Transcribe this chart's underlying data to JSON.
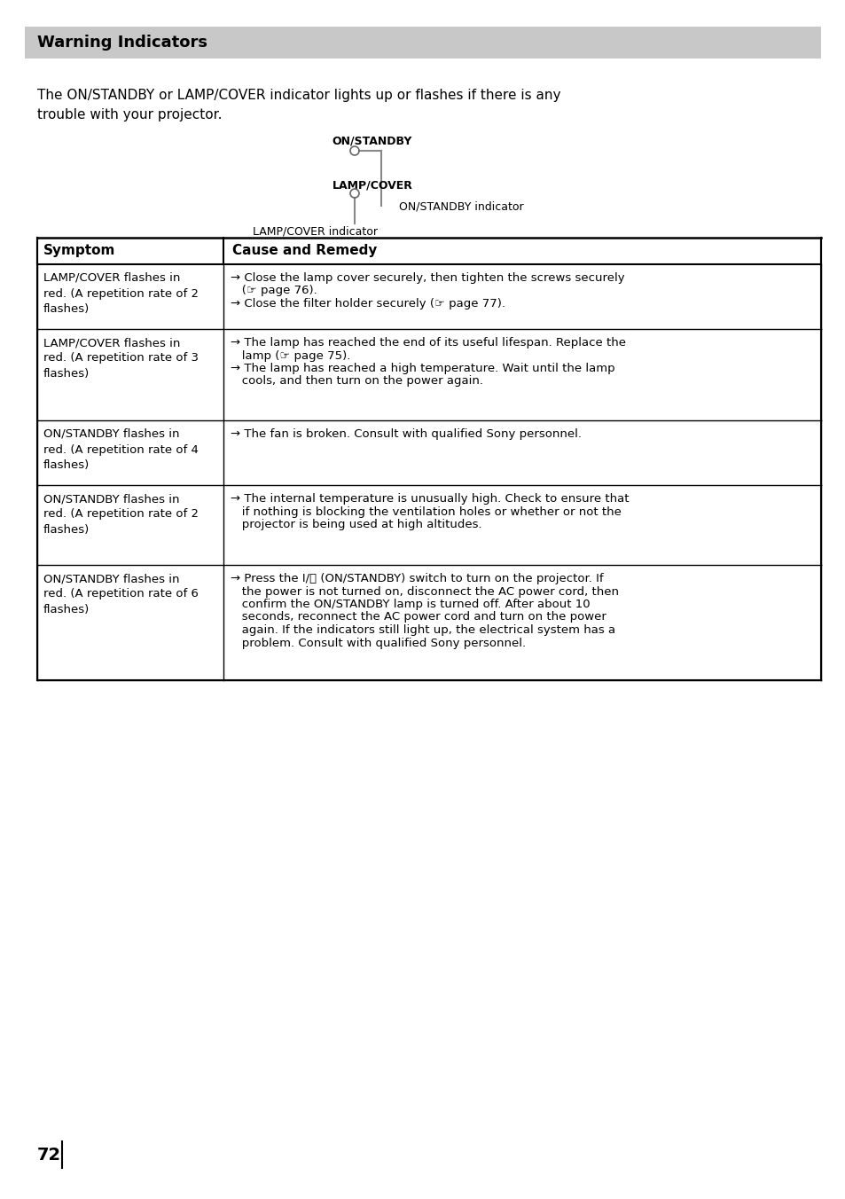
{
  "title": "Warning Indicators",
  "title_bg": "#c8c8c8",
  "page_bg": "#ffffff",
  "page_number": "72",
  "intro_line1": "The ON/STANDBY or LAMP/COVER indicator lights up or flashes if there is any",
  "intro_line2": "trouble with your projector.",
  "diag_on_standby": "ON/STANDBY",
  "diag_lamp_cover": "LAMP/COVER",
  "diag_lamp_indicator": "LAMP/COVER indicator",
  "diag_on_indicator": "ON/STANDBY indicator",
  "table_header_col1": "Symptom",
  "table_header_col2": "Cause and Remedy",
  "rows": [
    {
      "symptom": "LAMP/COVER flashes in\nred. (A repetition rate of 2\nflashes)",
      "remedy_lines": [
        "→ Close the lamp cover securely, then tighten the screws securely",
        "   (☞ page 76).",
        "→ Close the filter holder securely (☞ page 77)."
      ]
    },
    {
      "symptom": "LAMP/COVER flashes in\nred. (A repetition rate of 3\nflashes)",
      "remedy_lines": [
        "→ The lamp has reached the end of its useful lifespan. Replace the",
        "   lamp (☞ page 75).",
        "→ The lamp has reached a high temperature. Wait until the lamp",
        "   cools, and then turn on the power again."
      ]
    },
    {
      "symptom": "ON/STANDBY flashes in\nred. (A repetition rate of 4\nflashes)",
      "remedy_lines": [
        "→ The fan is broken. Consult with qualified Sony personnel."
      ]
    },
    {
      "symptom": "ON/STANDBY flashes in\nred. (A repetition rate of 2\nflashes)",
      "remedy_lines": [
        "→ The internal temperature is unusually high. Check to ensure that",
        "   if nothing is blocking the ventilation holes or whether or not the",
        "   projector is being used at high altitudes."
      ]
    },
    {
      "symptom": "ON/STANDBY flashes in\nred. (A repetition rate of 6\nflashes)",
      "remedy_lines": [
        "→ Press the I/⏻ (ON/STANDBY) switch to turn on the projector. If",
        "   the power is not turned on, disconnect the AC power cord, then",
        "   confirm the ON/STANDBY lamp is turned off. After about 10",
        "   seconds, reconnect the AC power cord and turn on the power",
        "   again. If the indicators still light up, the electrical system has a",
        "   problem. Consult with qualified Sony personnel."
      ]
    }
  ]
}
